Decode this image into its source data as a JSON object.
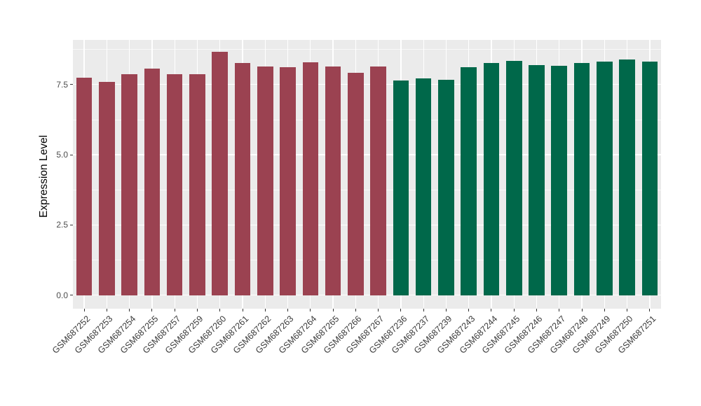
{
  "figure": {
    "background": "#FFFFFF",
    "panel_background": "#EBEBEB"
  },
  "chart_data": {
    "type": "bar",
    "title": "",
    "xlabel": "",
    "ylabel": "Expression Level",
    "ylim": [
      -0.48,
      9.09
    ],
    "y_major_ticks": [
      0,
      2.5,
      5,
      7.5
    ],
    "y_tick_labels": [
      "0.0",
      "2.5",
      "5.0",
      "7.5"
    ],
    "y_minor_ticks": [
      1.25,
      3.75,
      6.25,
      8.75
    ],
    "grid": {
      "major_color": "#FFFFFF",
      "minor_color": "#FFFFFF",
      "vertical_majors": "at each bar center"
    },
    "legend_position": "none",
    "group_colors": {
      "maroon": "#9B4251",
      "green": "#00684A"
    },
    "bars": [
      {
        "label": "GSM687252",
        "value": 7.75,
        "group": "maroon"
      },
      {
        "label": "GSM687253",
        "value": 7.6,
        "group": "maroon"
      },
      {
        "label": "GSM687254",
        "value": 7.88,
        "group": "maroon"
      },
      {
        "label": "GSM687255",
        "value": 8.06,
        "group": "maroon"
      },
      {
        "label": "GSM687257",
        "value": 7.88,
        "group": "maroon"
      },
      {
        "label": "GSM687259",
        "value": 7.86,
        "group": "maroon"
      },
      {
        "label": "GSM687260",
        "value": 8.67,
        "group": "maroon"
      },
      {
        "label": "GSM687261",
        "value": 8.28,
        "group": "maroon"
      },
      {
        "label": "GSM687262",
        "value": 8.15,
        "group": "maroon"
      },
      {
        "label": "GSM687263",
        "value": 8.12,
        "group": "maroon"
      },
      {
        "label": "GSM687264",
        "value": 8.3,
        "group": "maroon"
      },
      {
        "label": "GSM687265",
        "value": 8.14,
        "group": "maroon"
      },
      {
        "label": "GSM687266",
        "value": 7.93,
        "group": "maroon"
      },
      {
        "label": "GSM687267",
        "value": 8.15,
        "group": "maroon"
      },
      {
        "label": "GSM687236",
        "value": 7.65,
        "group": "green"
      },
      {
        "label": "GSM687237",
        "value": 7.72,
        "group": "green"
      },
      {
        "label": "GSM687239",
        "value": 7.67,
        "group": "green"
      },
      {
        "label": "GSM687243",
        "value": 8.12,
        "group": "green"
      },
      {
        "label": "GSM687244",
        "value": 8.26,
        "group": "green"
      },
      {
        "label": "GSM687245",
        "value": 8.33,
        "group": "green"
      },
      {
        "label": "GSM687246",
        "value": 8.2,
        "group": "green"
      },
      {
        "label": "GSM687247",
        "value": 8.18,
        "group": "green"
      },
      {
        "label": "GSM687248",
        "value": 8.26,
        "group": "green"
      },
      {
        "label": "GSM687249",
        "value": 8.31,
        "group": "green"
      },
      {
        "label": "GSM687250",
        "value": 8.4,
        "group": "green"
      },
      {
        "label": "GSM687251",
        "value": 8.32,
        "group": "green"
      }
    ]
  }
}
